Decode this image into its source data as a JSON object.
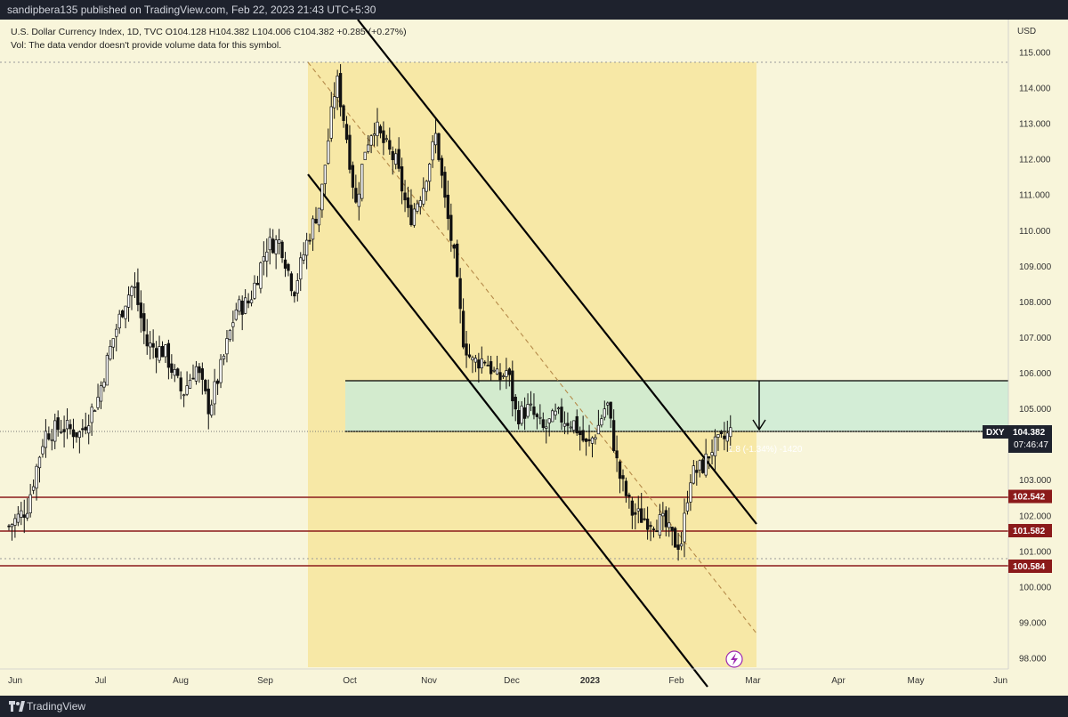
{
  "header": {
    "publisher": "sandipbera135 published on TradingView.com, Feb 22, 2023 21:43 UTC+5:30"
  },
  "legend": {
    "line1": "U.S. Dollar Currency Index, 1D, TVC  O104.128  H104.382  L104.006  C104.382  +0.285 (+0.27%)",
    "line2": "Vol: The data vendor doesn't provide volume data for this symbol."
  },
  "footer": {
    "brand": "TradingView"
  },
  "colors": {
    "background": "#f8f5da",
    "candle": "#111111",
    "channel_fill": "#f6e7a0",
    "zone_fill": "#cdebd5",
    "support": "#8b1a1a",
    "bar": "#1e222d"
  },
  "icons": [
    "tradingview-logo-icon",
    "lightning-icon",
    "down-arrow-icon"
  ],
  "chart_data": {
    "type": "candlestick",
    "currency": "USD",
    "symbol": "DXY",
    "last_price": "104.382",
    "countdown": "07:46:47",
    "measure_label": "1.8 (-1.34%) -1420",
    "x_ticks": [
      "Jun",
      "Jul",
      "Aug",
      "Sep",
      "Oct",
      "Nov",
      "Dec",
      "2023",
      "Feb",
      "Mar",
      "Apr",
      "May",
      "Jun"
    ],
    "y_ticks": [
      "115.000",
      "114.000",
      "113.000",
      "112.000",
      "111.000",
      "110.000",
      "109.000",
      "108.000",
      "107.000",
      "106.000",
      "105.000",
      "104.000",
      "103.000",
      "102.000",
      "101.000",
      "100.000",
      "99.000",
      "98.000"
    ],
    "ylim": [
      97.6,
      115.9
    ],
    "support_levels": [
      "102.542",
      "101.582",
      "100.584"
    ],
    "supply_zone": [
      104.382,
      105.8
    ],
    "descending_channel": "Sep 2022 – Feb 2023",
    "grid": false
  }
}
